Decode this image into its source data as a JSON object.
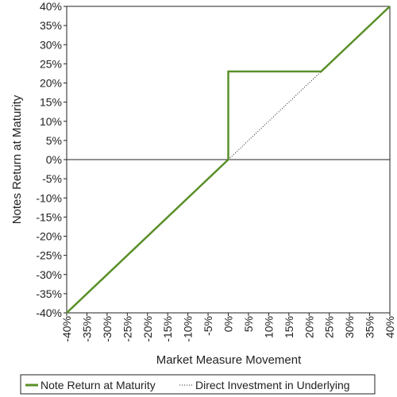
{
  "chart_data": {
    "type": "line",
    "xlabel": "Market Measure Movement",
    "ylabel": "Notes Return at Maturity",
    "xlim": [
      -40,
      40
    ],
    "ylim": [
      -40,
      40
    ],
    "x_ticks": [
      "-40%",
      "-35%",
      "-30%",
      "-25%",
      "-20%",
      "-15%",
      "-10%",
      "-5%",
      "0%",
      "5%",
      "10%",
      "15%",
      "20%",
      "25%",
      "30%",
      "35%",
      "40%"
    ],
    "y_ticks": [
      "40%",
      "35%",
      "30%",
      "25%",
      "20%",
      "15%",
      "10%",
      "5%",
      "0%",
      "-5%",
      "-10%",
      "-15%",
      "-20%",
      "-25%",
      "-30%",
      "-35%",
      "-40%"
    ],
    "grid": false,
    "legend_position": "bottom",
    "series": [
      {
        "name": "Note Return at Maturity",
        "style": "solid",
        "color": "#5a8f29",
        "points": [
          [
            -40,
            -40
          ],
          [
            0,
            0
          ],
          [
            0,
            23
          ],
          [
            23,
            23
          ],
          [
            40,
            40
          ]
        ]
      },
      {
        "name": "Direct Investment in Underlying",
        "style": "dotted",
        "color": "#222222",
        "points": [
          [
            0,
            0
          ],
          [
            23,
            23
          ]
        ]
      }
    ]
  }
}
